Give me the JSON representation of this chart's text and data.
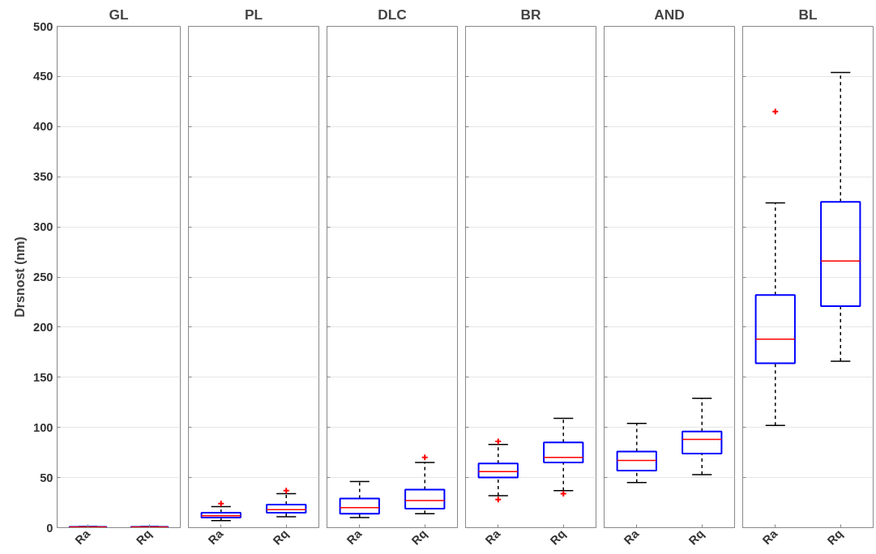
{
  "chart_data": [
    {
      "type": "box",
      "title": "GL",
      "ylabel": "Drsnost (nm)",
      "categories": [
        "Ra",
        "Rq"
      ],
      "ylim": [
        0,
        500
      ],
      "yticks": [
        0,
        50,
        100,
        150,
        200,
        250,
        300,
        350,
        400,
        450,
        500
      ],
      "grid": "y",
      "boxes": [
        {
          "low": 0.2,
          "q1": 0.4,
          "median": 0.6,
          "q3": 0.8,
          "high": 1
        },
        {
          "low": 0.2,
          "q1": 0.4,
          "median": 0.6,
          "q3": 0.8,
          "high": 1
        }
      ]
    },
    {
      "type": "box",
      "title": "PL",
      "categories": [
        "Ra",
        "Rq"
      ],
      "ylim": [
        0,
        500
      ],
      "yticks": [
        0,
        50,
        100,
        150,
        200,
        250,
        300,
        350,
        400,
        450,
        500
      ],
      "grid": "y",
      "tick_labels": "x",
      "boxes": [
        {
          "low": 7,
          "q1": 10,
          "median": 12,
          "q3": 15,
          "high": 21,
          "outliers": [
            24
          ]
        },
        {
          "low": 11,
          "q1": 15,
          "median": 18,
          "q3": 23,
          "high": 34,
          "outliers": [
            37
          ]
        }
      ]
    },
    {
      "type": "box",
      "title": "DLC",
      "categories": [
        "Ra",
        "Rq"
      ],
      "ylim": [
        0,
        500
      ],
      "yticks": [
        0,
        50,
        100,
        150,
        200,
        250,
        300,
        350,
        400,
        450,
        500
      ],
      "grid": "y",
      "tick_labels": "x",
      "boxes": [
        {
          "low": 10,
          "q1": 14,
          "median": 20,
          "q3": 29,
          "high": 46
        },
        {
          "low": 14,
          "q1": 19,
          "median": 27,
          "q3": 38,
          "high": 65,
          "outliers": [
            70
          ]
        }
      ]
    },
    {
      "type": "box",
      "title": "BR",
      "categories": [
        "Ra",
        "Rq"
      ],
      "ylim": [
        0,
        500
      ],
      "yticks": [
        0,
        50,
        100,
        150,
        200,
        250,
        300,
        350,
        400,
        450,
        500
      ],
      "grid": "y",
      "tick_labels": "x",
      "boxes": [
        {
          "low": 32,
          "q1": 50,
          "median": 56,
          "q3": 64,
          "high": 83,
          "outliers": [
            28,
            86
          ]
        },
        {
          "low": 37,
          "q1": 65,
          "median": 70,
          "q3": 85,
          "high": 109,
          "outliers": [
            34
          ]
        }
      ]
    },
    {
      "type": "box",
      "title": "AND",
      "categories": [
        "Ra",
        "Rq"
      ],
      "ylim": [
        0,
        500
      ],
      "yticks": [
        0,
        50,
        100,
        150,
        200,
        250,
        300,
        350,
        400,
        450,
        500
      ],
      "grid": "y",
      "tick_labels": "x",
      "boxes": [
        {
          "low": 45,
          "q1": 57,
          "median": 67,
          "q3": 76,
          "high": 104
        },
        {
          "low": 53,
          "q1": 74,
          "median": 88,
          "q3": 96,
          "high": 129
        }
      ]
    },
    {
      "type": "box",
      "title": "BL",
      "categories": [
        "Ra",
        "Rq"
      ],
      "ylim": [
        0,
        500
      ],
      "yticks": [
        0,
        50,
        100,
        150,
        200,
        250,
        300,
        350,
        400,
        450,
        500
      ],
      "grid": "y",
      "tick_labels": "x",
      "boxes": [
        {
          "low": 102,
          "q1": 164,
          "median": 188,
          "q3": 232,
          "high": 324,
          "outliers": [
            415
          ]
        },
        {
          "low": 166,
          "q1": 221,
          "median": 266,
          "q3": 325,
          "high": 454
        }
      ]
    }
  ]
}
